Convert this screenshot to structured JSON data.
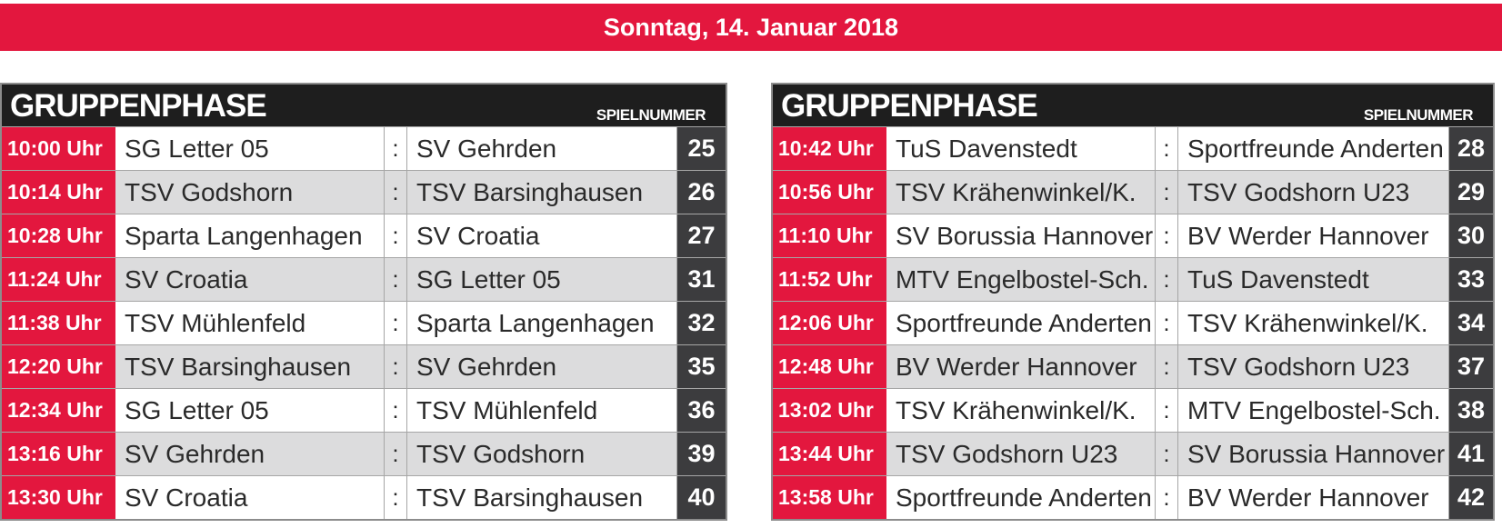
{
  "banner": "Sonntag, 14. Januar 2018",
  "tables": [
    {
      "title": "GRUPPENPHASE",
      "subtitle": "SPIELNUMMER",
      "rows": [
        {
          "time": "10:00 Uhr",
          "home": "SG Letter 05",
          "sep": ":",
          "away": "SV Gehrden",
          "num": "25"
        },
        {
          "time": "10:14 Uhr",
          "home": "TSV Godshorn",
          "sep": ":",
          "away": "TSV Barsinghausen",
          "num": "26"
        },
        {
          "time": "10:28 Uhr",
          "home": "Sparta Langenhagen",
          "sep": ":",
          "away": "SV Croatia",
          "num": "27"
        },
        {
          "time": "11:24 Uhr",
          "home": "SV Croatia",
          "sep": ":",
          "away": "SG Letter 05",
          "num": "31"
        },
        {
          "time": "11:38 Uhr",
          "home": "TSV Mühlenfeld",
          "sep": ":",
          "away": "Sparta Langenhagen",
          "num": "32"
        },
        {
          "time": "12:20 Uhr",
          "home": "TSV Barsinghausen",
          "sep": ":",
          "away": "SV Gehrden",
          "num": "35"
        },
        {
          "time": "12:34 Uhr",
          "home": "SG Letter 05",
          "sep": ":",
          "away": "TSV Mühlenfeld",
          "num": "36"
        },
        {
          "time": "13:16 Uhr",
          "home": "SV Gehrden",
          "sep": ":",
          "away": "TSV Godshorn",
          "num": "39"
        },
        {
          "time": "13:30 Uhr",
          "home": "SV Croatia",
          "sep": ":",
          "away": "TSV Barsinghausen",
          "num": "40"
        }
      ]
    },
    {
      "title": "GRUPPENPHASE",
      "subtitle": "SPIELNUMMER",
      "rows": [
        {
          "time": "10:42 Uhr",
          "home": "TuS Davenstedt",
          "sep": ":",
          "away": "Sportfreunde Anderten",
          "num": "28"
        },
        {
          "time": "10:56 Uhr",
          "home": "TSV Krähenwinkel/K.",
          "sep": ":",
          "away": "TSV Godshorn U23",
          "num": "29"
        },
        {
          "time": "11:10 Uhr",
          "home": "SV Borussia Hannover",
          "sep": ":",
          "away": "BV Werder Hannover",
          "num": "30"
        },
        {
          "time": "11:52 Uhr",
          "home": "MTV Engelbostel-Sch.",
          "sep": ":",
          "away": "TuS Davenstedt",
          "num": "33"
        },
        {
          "time": "12:06 Uhr",
          "home": "Sportfreunde Anderten",
          "sep": ":",
          "away": "TSV Krähenwinkel/K.",
          "num": "34"
        },
        {
          "time": "12:48 Uhr",
          "home": "BV Werder Hannover",
          "sep": ":",
          "away": "TSV Godshorn U23",
          "num": "37"
        },
        {
          "time": "13:02 Uhr",
          "home": "TSV Krähenwinkel/K.",
          "sep": ":",
          "away": "MTV Engelbostel-Sch.",
          "num": "38"
        },
        {
          "time": "13:44 Uhr",
          "home": "TSV Godshorn U23",
          "sep": ":",
          "away": "SV Borussia Hannover",
          "num": "41"
        },
        {
          "time": "13:58 Uhr",
          "home": "Sportfreunde Anderten",
          "sep": ":",
          "away": "BV Werder Hannover",
          "num": "42"
        }
      ]
    }
  ],
  "colors": {
    "accent": "#e3173e",
    "header": "#1e1e1e",
    "number_cell": "#3c3c3e",
    "alt_row": "#dcdcdd"
  }
}
